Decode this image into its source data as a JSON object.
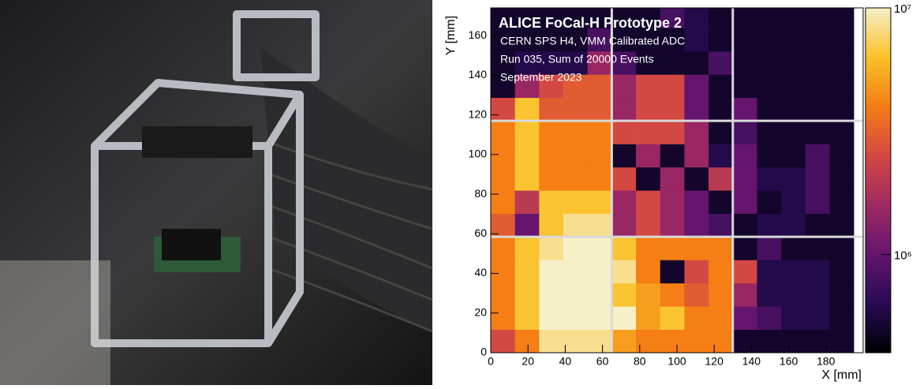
{
  "chart_data": {
    "type": "heatmap",
    "title": "ALICE FoCal-H Prototype 2",
    "annotations": [
      "CERN SPS H4, VMM Calibrated ADC",
      "Run 035, Sum of 20000 Events",
      "September 2023"
    ],
    "x_label": "X [mm]",
    "y_label": "Y [mm]",
    "xbins": [
      0,
      13,
      26,
      39,
      52,
      65,
      78,
      91,
      104,
      117,
      130,
      143,
      156,
      169,
      182,
      195
    ],
    "ybins": [
      0,
      11.7,
      23.4,
      35.1,
      46.8,
      58.5,
      70.2,
      81.9,
      93.6,
      105.3,
      117,
      128.7,
      140.4,
      152.1,
      163.8,
      175.5
    ],
    "xlim": [
      0,
      200
    ],
    "ylim": [
      0,
      174
    ],
    "xticks": [
      0,
      20,
      40,
      60,
      80,
      100,
      120,
      140,
      160,
      180
    ],
    "yticks": [
      0,
      20,
      40,
      60,
      80,
      100,
      120,
      140,
      160
    ],
    "zlim": [
      400000,
      10000000
    ],
    "zlog": true,
    "zticks": [
      {
        "value": 1000000,
        "label": "10⁶"
      },
      {
        "value": 10000000,
        "label": "10⁷"
      }
    ],
    "colormap": [
      "#000004",
      "#280b54",
      "#65156e",
      "#9f2a63",
      "#d44842",
      "#f57d15",
      "#fac127",
      "#f5f0c8"
    ],
    "module_color": "#d9d9d9",
    "z": [
      [
        2500000,
        4000000,
        8500000,
        8500000,
        8500000,
        5000000,
        4000000,
        4000000,
        4000000,
        4000000,
        500000,
        500000,
        500000,
        500000,
        500000
      ],
      [
        4000000,
        6500000,
        10000000,
        10000000,
        10000000,
        10000000,
        5000000,
        6500000,
        4000000,
        4000000,
        1000000,
        800000,
        600000,
        600000,
        500000
      ],
      [
        4000000,
        6500000,
        10000000,
        10000000,
        10000000,
        6500000,
        5000000,
        4000000,
        3000000,
        4000000,
        1500000,
        600000,
        600000,
        600000,
        500000
      ],
      [
        4000000,
        6500000,
        10000000,
        10000000,
        10000000,
        8500000,
        4000000,
        500000,
        2500000,
        4000000,
        2500000,
        600000,
        600000,
        600000,
        500000
      ],
      [
        4000000,
        6500000,
        8500000,
        10000000,
        10000000,
        6500000,
        4000000,
        4000000,
        4000000,
        4000000,
        500000,
        800000,
        500000,
        500000,
        500000
      ],
      [
        3000000,
        1000000,
        6500000,
        8500000,
        8500000,
        1500000,
        2500000,
        1500000,
        1000000,
        800000,
        500000,
        600000,
        600000,
        500000,
        500000
      ],
      [
        4000000,
        2000000,
        6500000,
        6500000,
        6500000,
        1500000,
        2500000,
        1500000,
        1000000,
        500000,
        1000000,
        500000,
        600000,
        800000,
        500000
      ],
      [
        4000000,
        6500000,
        4000000,
        4000000,
        4000000,
        2500000,
        500000,
        1500000,
        500000,
        2000000,
        1000000,
        600000,
        600000,
        800000,
        500000
      ],
      [
        4000000,
        6500000,
        4000000,
        4000000,
        4000000,
        500000,
        1500000,
        500000,
        1500000,
        600000,
        1000000,
        500000,
        500000,
        800000,
        500000
      ],
      [
        4000000,
        6500000,
        4000000,
        4000000,
        4000000,
        2500000,
        2500000,
        2500000,
        1500000,
        500000,
        800000,
        500000,
        500000,
        500000,
        500000
      ],
      [
        2500000,
        6500000,
        3000000,
        3000000,
        3000000,
        1500000,
        2500000,
        2500000,
        1000000,
        500000,
        1000000,
        500000,
        500000,
        500000,
        500000
      ],
      [
        500000,
        1500000,
        2500000,
        3000000,
        3000000,
        1500000,
        2500000,
        2500000,
        1000000,
        500000,
        500000,
        500000,
        500000,
        500000,
        500000
      ],
      [
        500000,
        600000,
        600000,
        600000,
        1500000,
        800000,
        500000,
        500000,
        500000,
        800000,
        500000,
        500000,
        500000,
        500000,
        500000
      ],
      [
        500000,
        500000,
        500000,
        500000,
        800000,
        500000,
        500000,
        500000,
        600000,
        500000,
        500000,
        500000,
        500000,
        500000,
        500000
      ],
      [
        500000,
        500000,
        500000,
        500000,
        500000,
        500000,
        500000,
        800000,
        600000,
        500000,
        500000,
        500000,
        500000,
        500000,
        500000
      ]
    ]
  }
}
